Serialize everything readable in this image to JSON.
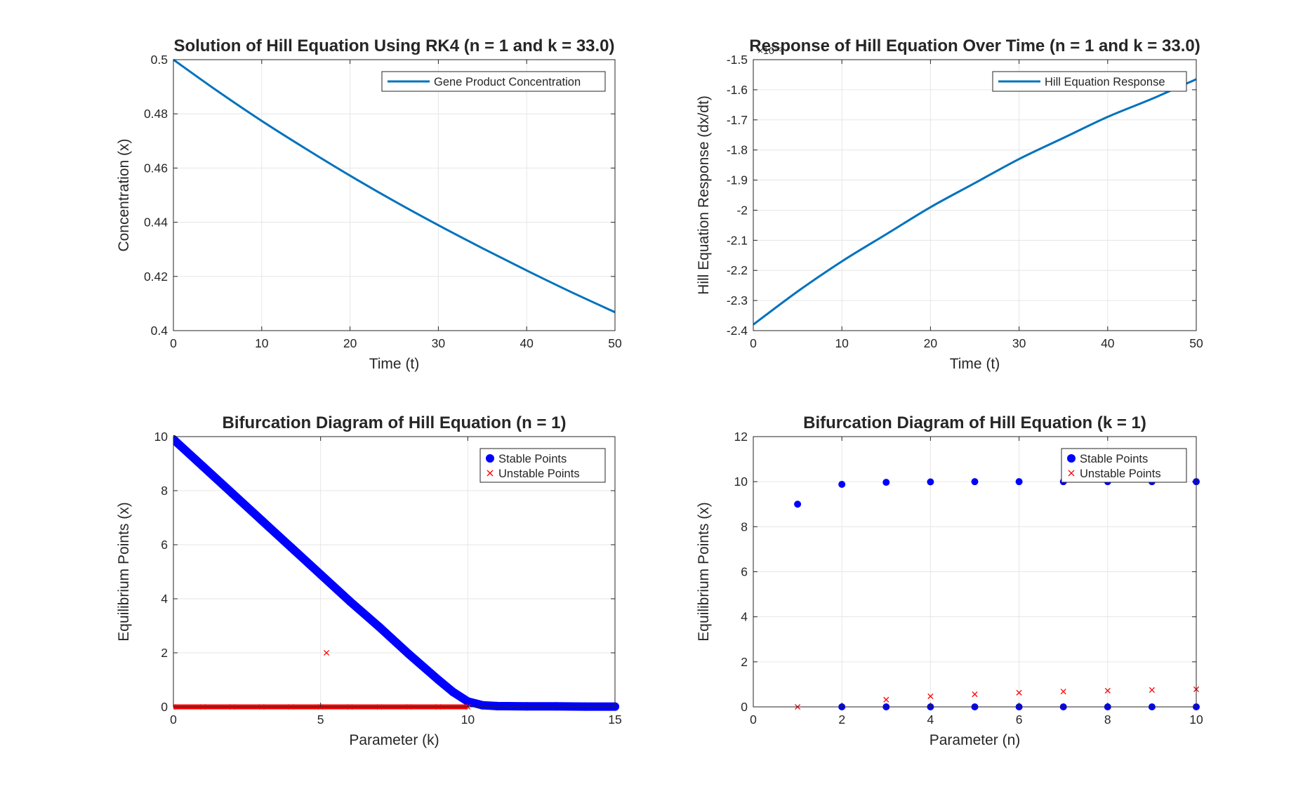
{
  "chart_data": [
    {
      "type": "line",
      "title": "Solution of Hill Equation Using RK4 (n = 1 and k = 33.0)",
      "xlabel": "Time (t)",
      "ylabel": "Concentration (x)",
      "xlim": [
        0,
        50
      ],
      "ylim": [
        0.4,
        0.5
      ],
      "xticks": [
        0,
        10,
        20,
        30,
        40,
        50
      ],
      "yticks": [
        0.4,
        0.42,
        0.44,
        0.46,
        0.48,
        0.5
      ],
      "grid": true,
      "legend_position": "top-right",
      "series": [
        {
          "name": "Gene Product Concentration",
          "color": "#0072BD",
          "x": [
            0,
            5,
            10,
            15,
            20,
            25,
            30,
            35,
            40,
            45,
            50
          ],
          "y": [
            0.5,
            0.4884,
            0.4774,
            0.4671,
            0.4572,
            0.4478,
            0.4389,
            0.4304,
            0.4222,
            0.4143,
            0.4068
          ]
        }
      ]
    },
    {
      "type": "line",
      "title": "Response of Hill Equation Over Time (n = 1 and k = 33.0)",
      "xlabel": "Time (t)",
      "ylabel": "Hill Equation Response (dx/dt)",
      "exponent_label": "×10⁻³",
      "xlim": [
        0,
        50
      ],
      "ylim": [
        -2.4,
        -1.5
      ],
      "xticks": [
        0,
        10,
        20,
        30,
        40,
        50
      ],
      "yticks": [
        -2.4,
        -2.3,
        -2.2,
        -2.1,
        -2,
        -1.9,
        -1.8,
        -1.7,
        -1.6,
        -1.5
      ],
      "grid": true,
      "legend_position": "top-right",
      "series": [
        {
          "name": "Hill Equation Response",
          "color": "#0072BD",
          "x": [
            0,
            5,
            10,
            15,
            20,
            25,
            30,
            35,
            40,
            45,
            50
          ],
          "y": [
            -2.38,
            -2.27,
            -2.17,
            -2.08,
            -1.99,
            -1.91,
            -1.83,
            -1.76,
            -1.69,
            -1.63,
            -1.565
          ]
        }
      ]
    },
    {
      "type": "scatter",
      "title": "Bifurcation Diagram of Hill Equation (n = 1)",
      "xlabel": "Parameter (k)",
      "ylabel": "Equilibrium Points (x)",
      "xlim": [
        0,
        15
      ],
      "ylim": [
        0,
        10
      ],
      "xticks": [
        0,
        5,
        10,
        15
      ],
      "yticks": [
        0,
        2,
        4,
        6,
        8,
        10
      ],
      "grid": true,
      "legend_position": "top-right",
      "series": [
        {
          "name": "Stable Points",
          "color": "#0000FF",
          "marker": "dot",
          "x": [
            0,
            1,
            2,
            3,
            4,
            5,
            6,
            7,
            8,
            9,
            9.5,
            10,
            10.5,
            11,
            12,
            13,
            14,
            15
          ],
          "y": [
            9.9,
            8.9,
            7.9,
            6.9,
            5.9,
            4.9,
            3.9,
            2.95,
            1.95,
            1.0,
            0.55,
            0.2,
            0.06,
            0.03,
            0.02,
            0.02,
            0.01,
            0.01
          ]
        },
        {
          "name": "Unstable Points",
          "color": "#FF0000",
          "marker": "x",
          "x": [
            0,
            1,
            2,
            3,
            4,
            5,
            5.2,
            6,
            7,
            8,
            9,
            10
          ],
          "y": [
            0,
            0,
            0,
            0,
            0,
            0,
            2.0,
            0,
            0,
            0,
            0,
            0
          ]
        }
      ]
    },
    {
      "type": "scatter",
      "title": "Bifurcation Diagram of Hill Equation (k = 1)",
      "xlabel": "Parameter (n)",
      "ylabel": "Equilibrium Points (x)",
      "xlim": [
        0,
        10
      ],
      "ylim": [
        0,
        12
      ],
      "xticks": [
        0,
        2,
        4,
        6,
        8,
        10
      ],
      "yticks": [
        0,
        2,
        4,
        6,
        8,
        10,
        12
      ],
      "grid": true,
      "legend_position": "top-right",
      "series": [
        {
          "name": "Stable Points",
          "color": "#0000FF",
          "marker": "dot",
          "points": [
            [
              1,
              9.0
            ],
            [
              2,
              9.88
            ],
            [
              3,
              9.97
            ],
            [
              4,
              9.99
            ],
            [
              5,
              10.0
            ],
            [
              6,
              10.0
            ],
            [
              7,
              10.0
            ],
            [
              8,
              10.0
            ],
            [
              9,
              10.0
            ],
            [
              10,
              10.0
            ],
            [
              2,
              0.0
            ],
            [
              3,
              0.0
            ],
            [
              4,
              0.0
            ],
            [
              5,
              0.0
            ],
            [
              6,
              0.0
            ],
            [
              7,
              0.0
            ],
            [
              8,
              0.0
            ],
            [
              9,
              0.0
            ],
            [
              10,
              0.0
            ]
          ]
        },
        {
          "name": "Unstable Points",
          "color": "#FF0000",
          "marker": "x",
          "points": [
            [
              1,
              0.0
            ],
            [
              3,
              0.32
            ],
            [
              4,
              0.47
            ],
            [
              5,
              0.56
            ],
            [
              6,
              0.63
            ],
            [
              7,
              0.68
            ],
            [
              8,
              0.72
            ],
            [
              9,
              0.75
            ],
            [
              10,
              0.78
            ]
          ]
        }
      ]
    }
  ]
}
